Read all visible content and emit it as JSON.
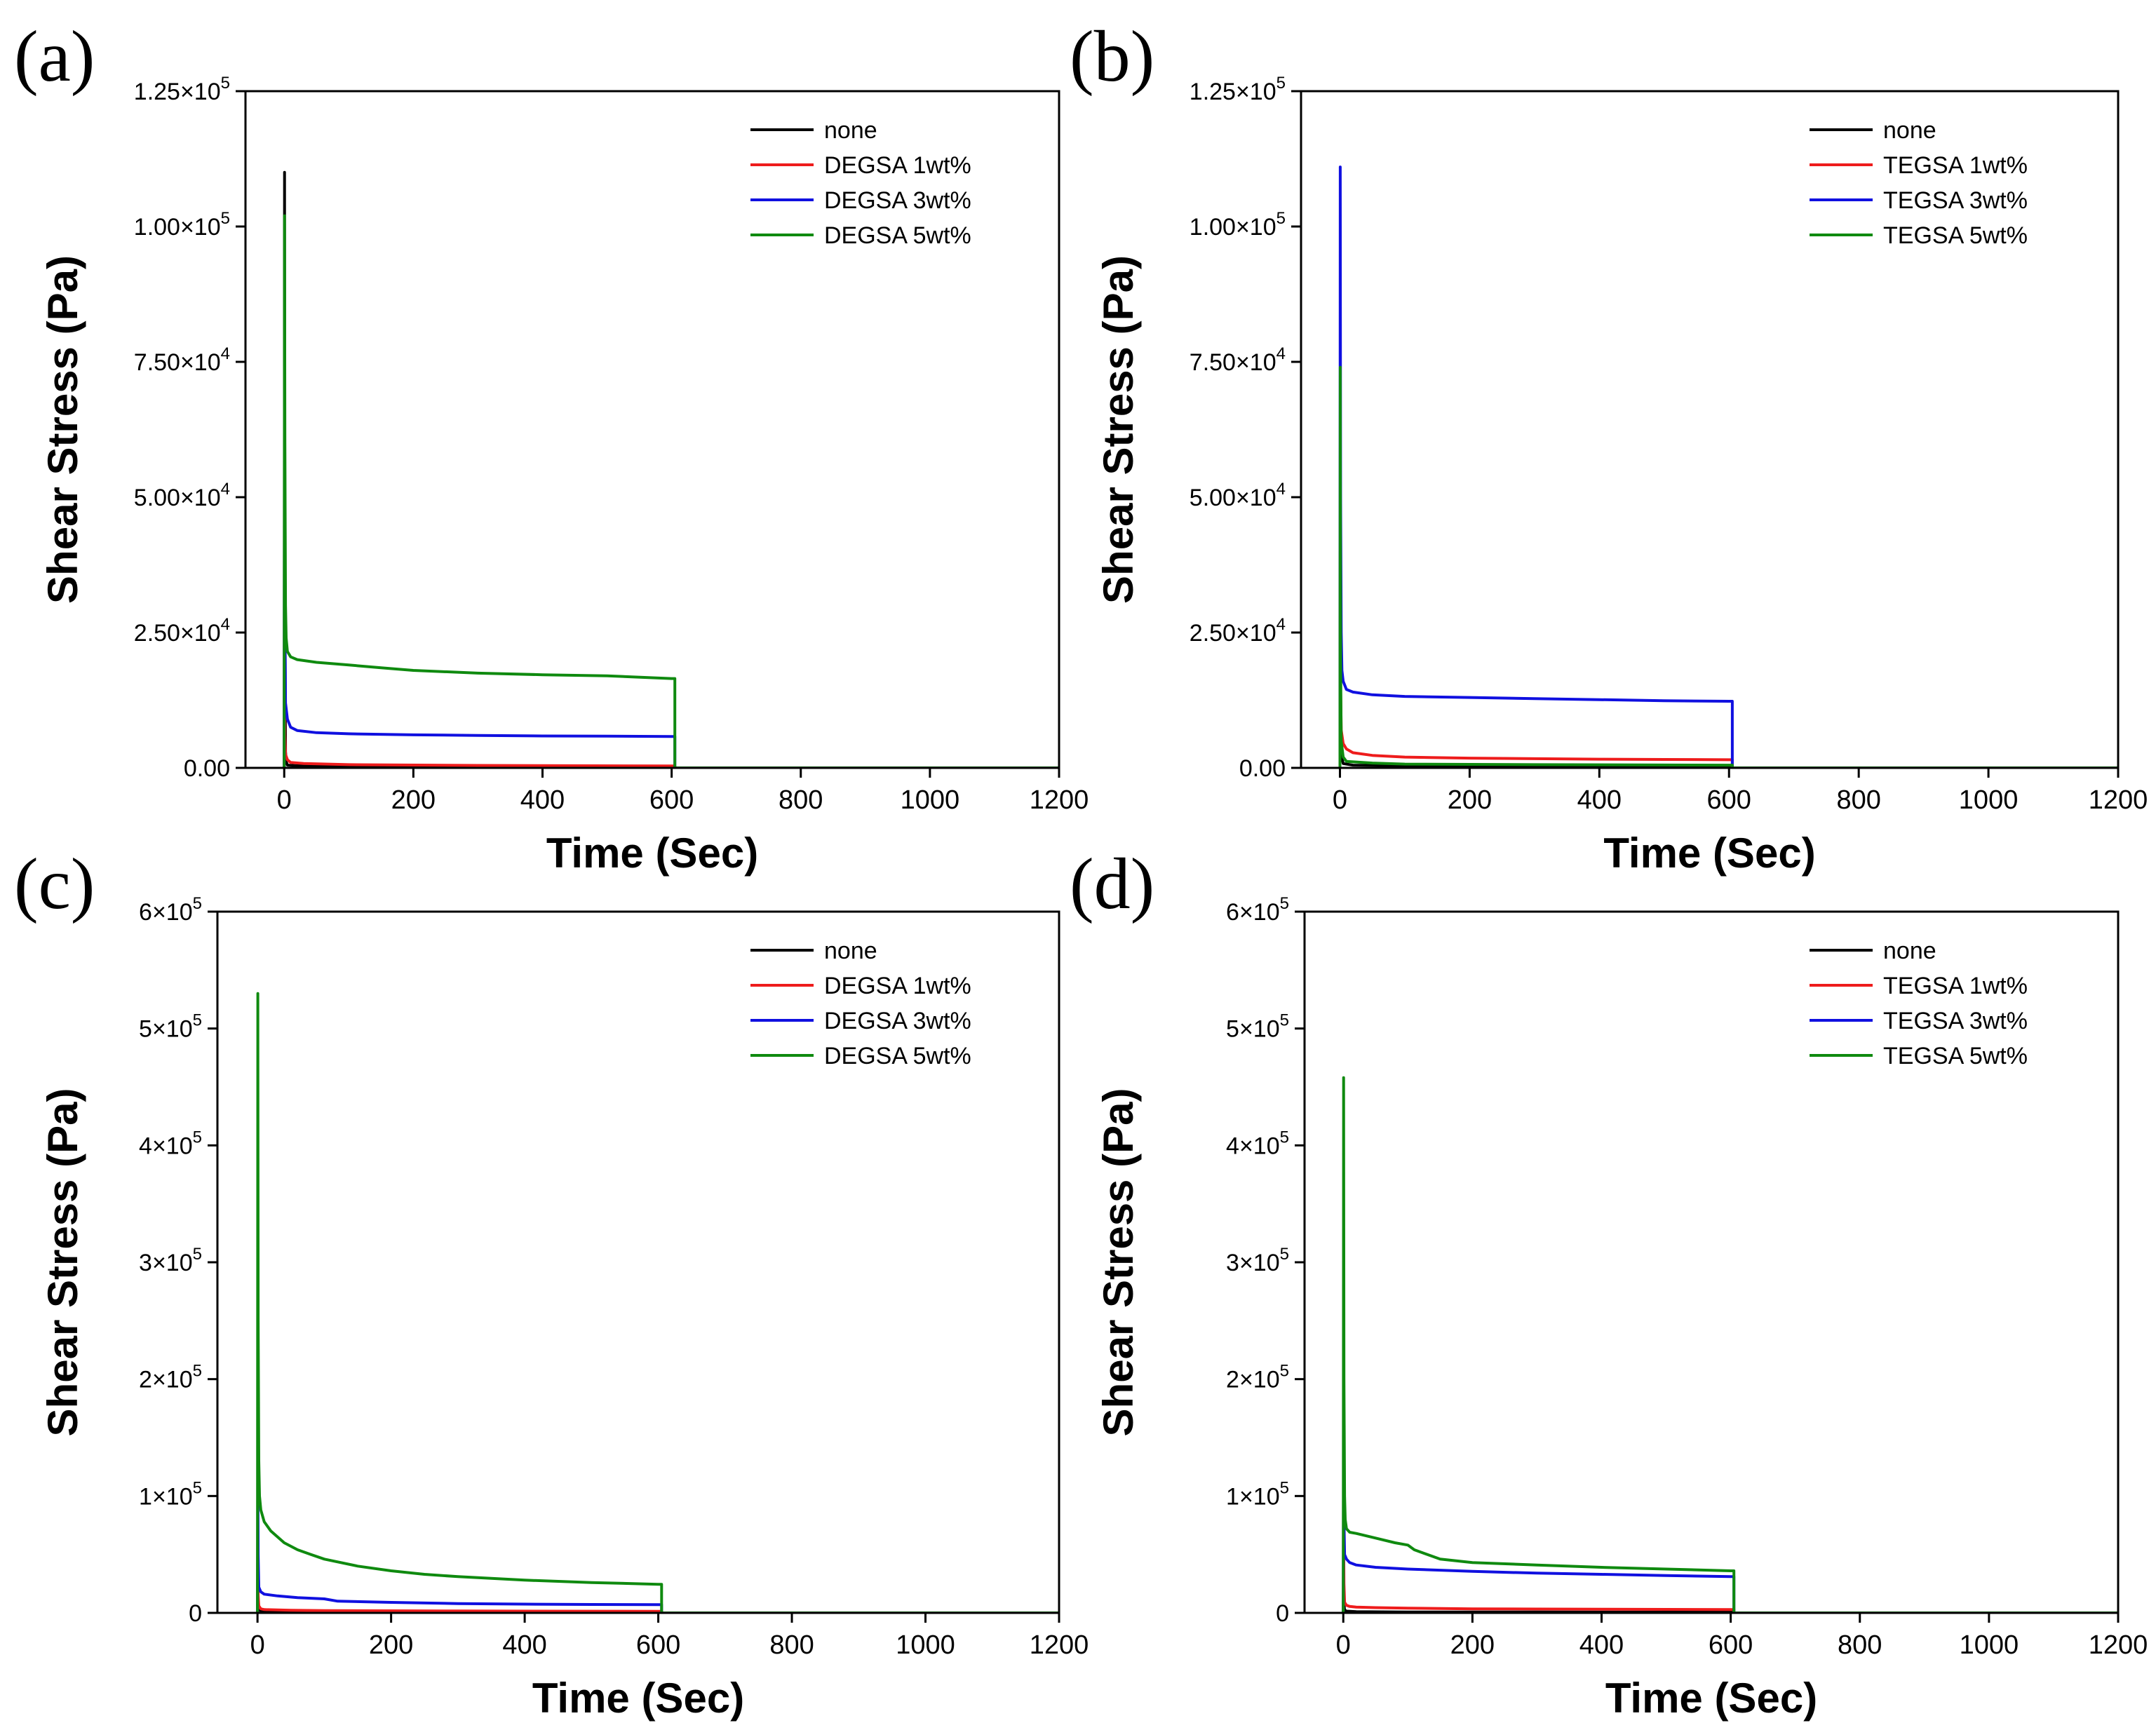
{
  "chart_data": [
    {
      "type": "line",
      "panel_label": "(a)",
      "xlabel": "Time (Sec)",
      "ylabel": "Shear Stress (Pa)",
      "xlim": [
        -60,
        1200
      ],
      "ylim": [
        0,
        125000
      ],
      "xticks": [
        0,
        200,
        400,
        600,
        800,
        1000,
        1200
      ],
      "xtick_labels": [
        "0",
        "200",
        "400",
        "600",
        "800",
        "1000",
        "1200"
      ],
      "yticks": [
        0,
        25000,
        50000,
        75000,
        100000,
        125000
      ],
      "ytick_labels": [
        {
          "base": "0.00",
          "exp": ""
        },
        {
          "base": "2.50×10",
          "exp": "4"
        },
        {
          "base": "5.00×10",
          "exp": "4"
        },
        {
          "base": "7.50×10",
          "exp": "4"
        },
        {
          "base": "1.00×10",
          "exp": "5"
        },
        {
          "base": "1.25×10",
          "exp": "5"
        }
      ],
      "legend_position": "top-right",
      "series": [
        {
          "name": "none",
          "color": "#000000",
          "x": [
            0,
            0.5,
            1,
            2,
            3,
            5,
            20,
            100,
            300,
            600,
            605,
            605,
            1200
          ],
          "y": [
            0,
            110000,
            30000,
            3000,
            1200,
            500,
            400,
            300,
            250,
            200,
            200,
            0,
            0
          ]
        },
        {
          "name": "DEGSA 1wt%",
          "color": "#ee1c1c",
          "x": [
            0,
            0.5,
            1,
            2,
            5,
            10,
            30,
            100,
            300,
            600,
            605,
            605,
            1200
          ],
          "y": [
            0,
            20000,
            6000,
            2500,
            1500,
            1000,
            800,
            600,
            450,
            350,
            350,
            0,
            0
          ]
        },
        {
          "name": "DEGSA 3wt%",
          "color": "#1010e0",
          "x": [
            0,
            0.5,
            1,
            2,
            5,
            10,
            20,
            50,
            100,
            200,
            300,
            400,
            500,
            600,
            605,
            605,
            1200
          ],
          "y": [
            0,
            70000,
            30000,
            12000,
            9000,
            7500,
            6900,
            6500,
            6300,
            6100,
            6000,
            5900,
            5850,
            5800,
            5800,
            0,
            0
          ]
        },
        {
          "name": "DEGSA 5wt%",
          "color": "#0f8a0f",
          "x": [
            0,
            0.5,
            1,
            2,
            3,
            5,
            10,
            20,
            50,
            100,
            150,
            200,
            300,
            400,
            500,
            600,
            605,
            605,
            1200
          ],
          "y": [
            0,
            102000,
            60000,
            30000,
            24000,
            21500,
            20500,
            20000,
            19500,
            19000,
            18500,
            18000,
            17500,
            17200,
            17000,
            16500,
            16500,
            0,
            0
          ]
        }
      ]
    },
    {
      "type": "line",
      "panel_label": "(b)",
      "xlabel": "Time (Sec)",
      "ylabel": "Shear Stress (Pa)",
      "xlim": [
        -60,
        1200
      ],
      "ylim": [
        0,
        125000
      ],
      "xticks": [
        0,
        200,
        400,
        600,
        800,
        1000,
        1200
      ],
      "xtick_labels": [
        "0",
        "200",
        "400",
        "600",
        "800",
        "1000",
        "1200"
      ],
      "yticks": [
        0,
        25000,
        50000,
        75000,
        100000,
        125000
      ],
      "ytick_labels": [
        {
          "base": "0.00",
          "exp": ""
        },
        {
          "base": "2.50×10",
          "exp": "4"
        },
        {
          "base": "5.00×10",
          "exp": "4"
        },
        {
          "base": "7.50×10",
          "exp": "4"
        },
        {
          "base": "1.00×10",
          "exp": "5"
        },
        {
          "base": "1.25×10",
          "exp": "5"
        }
      ],
      "legend_position": "top-right",
      "series": [
        {
          "name": "none",
          "color": "#000000",
          "x": [
            0,
            0.5,
            1,
            2,
            5,
            20,
            100,
            300,
            600,
            605,
            605,
            1200
          ],
          "y": [
            0,
            28000,
            8000,
            2500,
            800,
            500,
            400,
            300,
            250,
            250,
            0,
            0
          ]
        },
        {
          "name": "TEGSA 1wt%",
          "color": "#ee1c1c",
          "x": [
            0,
            0.5,
            1,
            2,
            5,
            10,
            20,
            50,
            100,
            200,
            300,
            400,
            500,
            600,
            605,
            605,
            1200
          ],
          "y": [
            0,
            40000,
            15000,
            7000,
            4500,
            3500,
            2800,
            2300,
            2000,
            1800,
            1700,
            1600,
            1550,
            1500,
            1500,
            0,
            0
          ]
        },
        {
          "name": "TEGSA 3wt%",
          "color": "#1010e0",
          "x": [
            0,
            0.5,
            1,
            2,
            3,
            5,
            10,
            20,
            50,
            100,
            200,
            300,
            400,
            500,
            600,
            605,
            605,
            1200
          ],
          "y": [
            0,
            111000,
            50000,
            25000,
            18000,
            16000,
            14500,
            14000,
            13500,
            13200,
            13000,
            12800,
            12600,
            12400,
            12300,
            12300,
            0,
            0
          ]
        },
        {
          "name": "TEGSA 5wt%",
          "color": "#0f8a0f",
          "x": [
            0,
            0.5,
            1,
            2,
            5,
            10,
            50,
            100,
            300,
            600,
            605,
            605,
            1200
          ],
          "y": [
            0,
            74000,
            20000,
            5000,
            2000,
            1200,
            900,
            700,
            600,
            500,
            500,
            0,
            0
          ]
        }
      ]
    },
    {
      "type": "line",
      "panel_label": "(c)",
      "xlabel": "Time (Sec)",
      "ylabel": "Shear Stress (Pa)",
      "xlim": [
        -60,
        1200
      ],
      "ylim": [
        0,
        600000
      ],
      "xticks": [
        0,
        200,
        400,
        600,
        800,
        1000,
        1200
      ],
      "xtick_labels": [
        "0",
        "200",
        "400",
        "600",
        "800",
        "1000",
        "1200"
      ],
      "yticks": [
        0,
        100000,
        200000,
        300000,
        400000,
        500000,
        600000
      ],
      "ytick_labels": [
        {
          "base": "0",
          "exp": ""
        },
        {
          "base": "1×10",
          "exp": "5"
        },
        {
          "base": "2×10",
          "exp": "5"
        },
        {
          "base": "3×10",
          "exp": "5"
        },
        {
          "base": "4×10",
          "exp": "5"
        },
        {
          "base": "5×10",
          "exp": "5"
        },
        {
          "base": "6×10",
          "exp": "5"
        }
      ],
      "legend_position": "top-right",
      "series": [
        {
          "name": "none",
          "color": "#000000",
          "x": [
            0,
            0.5,
            1,
            2,
            5,
            20,
            100,
            300,
            600,
            605,
            605,
            1200
          ],
          "y": [
            0,
            40000,
            10000,
            3000,
            1500,
            1000,
            800,
            700,
            600,
            600,
            0,
            0
          ]
        },
        {
          "name": "DEGSA 1wt%",
          "color": "#ee1c1c",
          "x": [
            0,
            0.5,
            1,
            2,
            5,
            10,
            50,
            100,
            300,
            600,
            605,
            605,
            1200
          ],
          "y": [
            0,
            60000,
            15000,
            6000,
            3500,
            2800,
            2200,
            1900,
            1600,
            1400,
            1400,
            0,
            0
          ]
        },
        {
          "name": "DEGSA 3wt%",
          "color": "#1010e0",
          "x": [
            0,
            0.5,
            1,
            2,
            5,
            10,
            30,
            60,
            100,
            120,
            200,
            300,
            400,
            500,
            600,
            605,
            605,
            1200
          ],
          "y": [
            0,
            120000,
            50000,
            22000,
            18000,
            16000,
            14500,
            13000,
            12000,
            10000,
            9000,
            8000,
            7500,
            7200,
            7000,
            7000,
            0,
            0
          ]
        },
        {
          "name": "DEGSA 5wt%",
          "color": "#0f8a0f",
          "x": [
            0,
            0.5,
            1,
            2,
            3,
            5,
            10,
            20,
            40,
            60,
            80,
            100,
            150,
            200,
            250,
            300,
            400,
            500,
            600,
            605,
            605,
            1200
          ],
          "y": [
            0,
            530000,
            250000,
            130000,
            100000,
            88000,
            78000,
            70000,
            60000,
            54000,
            50000,
            46000,
            40000,
            36000,
            33000,
            31000,
            28000,
            26000,
            24500,
            24500,
            0,
            0
          ]
        }
      ]
    },
    {
      "type": "line",
      "panel_label": "(d)",
      "xlabel": "Time (Sec)",
      "ylabel": "Shear Stress (Pa)",
      "xlim": [
        -60,
        1200
      ],
      "ylim": [
        0,
        600000
      ],
      "xticks": [
        0,
        200,
        400,
        600,
        800,
        1000,
        1200
      ],
      "xtick_labels": [
        "0",
        "200",
        "400",
        "600",
        "800",
        "1000",
        "1200"
      ],
      "yticks": [
        0,
        100000,
        200000,
        300000,
        400000,
        500000,
        600000
      ],
      "ytick_labels": [
        {
          "base": "0",
          "exp": ""
        },
        {
          "base": "1×10",
          "exp": "5"
        },
        {
          "base": "2×10",
          "exp": "5"
        },
        {
          "base": "3×10",
          "exp": "5"
        },
        {
          "base": "4×10",
          "exp": "5"
        },
        {
          "base": "5×10",
          "exp": "5"
        },
        {
          "base": "6×10",
          "exp": "5"
        }
      ],
      "legend_position": "top-right",
      "series": [
        {
          "name": "none",
          "color": "#000000",
          "x": [
            0,
            0.5,
            1,
            2,
            5,
            20,
            100,
            300,
            600,
            605,
            605,
            1200
          ],
          "y": [
            0,
            30000,
            8000,
            2500,
            1500,
            1000,
            800,
            700,
            600,
            600,
            0,
            0
          ]
        },
        {
          "name": "TEGSA 1wt%",
          "color": "#ee1c1c",
          "x": [
            0,
            0.5,
            1,
            2,
            5,
            10,
            20,
            50,
            100,
            200,
            300,
            400,
            500,
            600,
            605,
            605,
            1200
          ],
          "y": [
            0,
            70000,
            25000,
            9000,
            6500,
            5500,
            5000,
            4500,
            4000,
            3500,
            3300,
            3100,
            3000,
            2800,
            2800,
            0,
            0
          ]
        },
        {
          "name": "TEGSA 3wt%",
          "color": "#1010e0",
          "x": [
            0,
            0.5,
            1,
            2,
            5,
            10,
            20,
            50,
            100,
            200,
            300,
            400,
            500,
            600,
            605,
            605,
            1200
          ],
          "y": [
            0,
            160000,
            80000,
            50000,
            46000,
            43000,
            41000,
            39000,
            37500,
            35500,
            34000,
            33000,
            32000,
            31000,
            31000,
            0,
            0
          ]
        },
        {
          "name": "TEGSA 5wt%",
          "color": "#0f8a0f",
          "x": [
            0,
            0.5,
            1,
            2,
            3,
            5,
            10,
            20,
            50,
            80,
            100,
            110,
            150,
            200,
            300,
            400,
            500,
            600,
            605,
            605,
            1200
          ],
          "y": [
            0,
            458000,
            200000,
            100000,
            80000,
            72000,
            69000,
            68000,
            64000,
            60000,
            58000,
            54000,
            46000,
            43000,
            41000,
            39000,
            37500,
            36000,
            36000,
            0,
            0
          ]
        }
      ]
    }
  ]
}
